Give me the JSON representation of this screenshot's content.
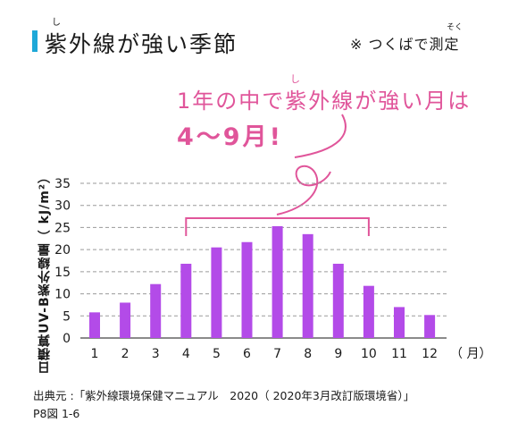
{
  "header": {
    "title": "紫外線が強い季節",
    "title_ruby": "し",
    "note": "※ つくばで測定",
    "note_ruby": "そく"
  },
  "callout": {
    "line1": "1年の中で紫外線が強い月は",
    "line1_ruby": "し",
    "line2": "4～9月!"
  },
  "source": {
    "line1": "出典元 :「紫外線環境保健マニュアル　2020（ 2020年3月改訂版環境省）」",
    "line2": "P8図 1-6"
  },
  "colors": {
    "bar": "#b34be8",
    "accent": "#e0559a",
    "title_bar": "#1ea8d8"
  },
  "chart_data": {
    "type": "bar",
    "categories": [
      "1",
      "2",
      "3",
      "4",
      "5",
      "6",
      "7",
      "8",
      "9",
      "10",
      "11",
      "12"
    ],
    "values": [
      5.8,
      8.0,
      12.2,
      16.8,
      20.5,
      21.7,
      25.3,
      23.5,
      16.8,
      11.8,
      7.0,
      5.2
    ],
    "xlabel": "（ 月）",
    "ylabel": "日積算UV-B紫外線量（ kJ/m²）",
    "yticks": [
      "0",
      "5",
      "10",
      "15",
      "20",
      "25",
      "30",
      "35"
    ],
    "ylim": [
      0,
      35
    ],
    "grid": true,
    "highlight_range": [
      "4",
      "10"
    ]
  }
}
